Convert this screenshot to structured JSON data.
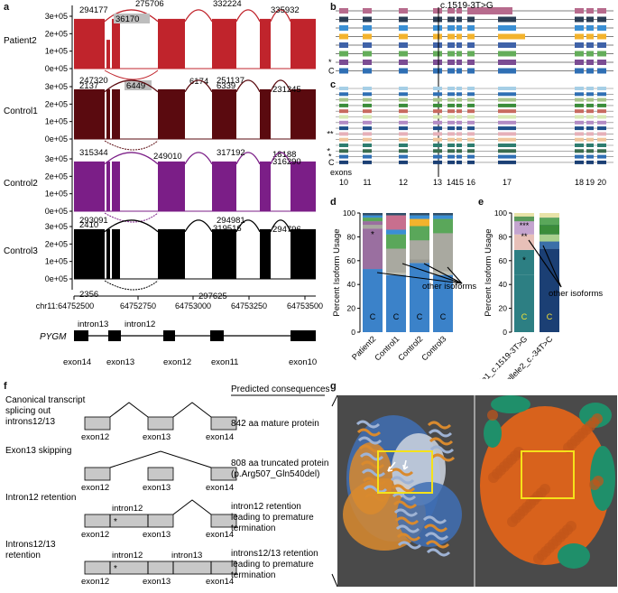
{
  "panel_letters": {
    "a": "a",
    "b": "b",
    "c": "c",
    "d": "d",
    "e": "e",
    "f": "f",
    "g": "g"
  },
  "panel_a": {
    "samples": [
      {
        "name": "Patient2",
        "color": "#c0242c",
        "top_labels": [
          "294177",
          "36170",
          "275706",
          "332224",
          "335932"
        ],
        "bottom_labels": [
          "2137",
          "6449",
          "6174",
          "6339"
        ]
      },
      {
        "name": "Control1",
        "color": "#5a0a0f",
        "top_labels": [
          "247320",
          "251137",
          "231245"
        ],
        "bottom_labels": [
          "249010",
          "18188"
        ]
      },
      {
        "name": "Control2",
        "color": "#7b1e87",
        "top_labels": [
          "315344",
          "317192",
          "316290"
        ],
        "bottom_labels": [
          "2410",
          "319516"
        ]
      },
      {
        "name": "Control3",
        "color": "#000000",
        "top_labels": [
          "293091",
          "294981",
          "294796"
        ],
        "bottom_labels": [
          "2356",
          "297625"
        ]
      }
    ],
    "y_ticks": [
      "3e+05",
      "2e+05",
      "1e+05",
      "0e+05"
    ],
    "x_ticks": [
      "chr11:64752500",
      "64752750",
      "64753000",
      "64753250",
      "64753500"
    ],
    "gene": "PYGM",
    "gene_exons": [
      "exon14",
      "exon13",
      "exon12",
      "exon11",
      "exon10"
    ],
    "gene_introns": [
      "intron13",
      "intron12"
    ]
  },
  "panel_bc": {
    "variant_label": "c.1519-3T>G",
    "b_marks": [
      "*",
      "C"
    ],
    "c_marks": [
      "***",
      "**",
      "*",
      "C"
    ],
    "exons_label": "exons",
    "exon_numbers": [
      "10",
      "11",
      "12",
      "13",
      "14",
      "15",
      "16",
      "17",
      "18",
      "19",
      "20"
    ]
  },
  "panel_d": {
    "ylabel": "Percent Isoform Usage",
    "y_ticks": [
      "100",
      "80",
      "60",
      "40",
      "20",
      "0"
    ],
    "categories": [
      "Patient2",
      "Control1",
      "Control2",
      "Control3"
    ],
    "bar_label": "C",
    "star": "*",
    "annotation": "other isoforms"
  },
  "panel_e": {
    "ylabel": "Percent Isoform Usage",
    "y_ticks": [
      "100",
      "80",
      "60",
      "40",
      "20",
      "0"
    ],
    "categories": [
      "allele1_c.1519-3T>G",
      "allele2_c.-34T>C"
    ],
    "bar_label": "C",
    "marks": [
      "***",
      "**",
      "*"
    ],
    "annotation": "other isoforms"
  },
  "panel_f": {
    "header": "Predicted consequences",
    "rows": [
      {
        "title": [
          "Canonical transcript",
          "splicing out",
          "introns12/13"
        ],
        "exons": [
          "exon12",
          "exon13",
          "exon14"
        ],
        "introns": [],
        "consequence": [
          "842 aa mature protein"
        ]
      },
      {
        "title": [
          "Exon13 skipping"
        ],
        "exons": [
          "exon12",
          "exon13",
          "exon14"
        ],
        "introns": [],
        "consequence": [
          "808 aa truncated protein",
          "(p.Arg507_Gln540del)"
        ]
      },
      {
        "title": [
          "Intron12 retention"
        ],
        "exons": [
          "exon12",
          "exon13",
          "exon14"
        ],
        "introns": [
          "intron12"
        ],
        "consequence": [
          "intron12  retention",
          "leading to premature",
          "termination"
        ]
      },
      {
        "title": [
          "Introns12/13",
          "retention"
        ],
        "exons": [
          "exon12",
          "exon13",
          "exon14"
        ],
        "introns": [
          "intron12",
          "intron13"
        ],
        "consequence": [
          "introns12/13  retention",
          "leading to premature",
          "termination"
        ]
      }
    ],
    "star": "*"
  },
  "chart_data": [
    {
      "type": "bar",
      "title": "",
      "categories": [
        "Patient2",
        "Control1",
        "Control2",
        "Control3"
      ],
      "ylabel": "Percent Isoform Usage",
      "ylim": [
        0,
        100
      ],
      "series": [
        {
          "name": "C",
          "values": [
            53,
            48,
            58,
            48
          ]
        },
        {
          "name": "*",
          "values": [
            34,
            2,
            3,
            3
          ]
        },
        {
          "name": "other isoforms",
          "values": [
            13,
            50,
            39,
            49
          ]
        }
      ]
    },
    {
      "type": "bar",
      "title": "",
      "categories": [
        "allele1_c.1519-3T>G",
        "allele2_c.-34T>C"
      ],
      "ylabel": "Percent Isoform Usage",
      "ylim": [
        0,
        100
      ],
      "series": [
        {
          "name": "C",
          "values": [
            48,
            70
          ]
        },
        {
          "name": "*",
          "values": [
            21,
            0
          ]
        },
        {
          "name": "**",
          "values": [
            13,
            0
          ]
        },
        {
          "name": "***",
          "values": [
            7,
            0
          ]
        },
        {
          "name": "other isoforms",
          "values": [
            11,
            30
          ]
        }
      ]
    }
  ]
}
